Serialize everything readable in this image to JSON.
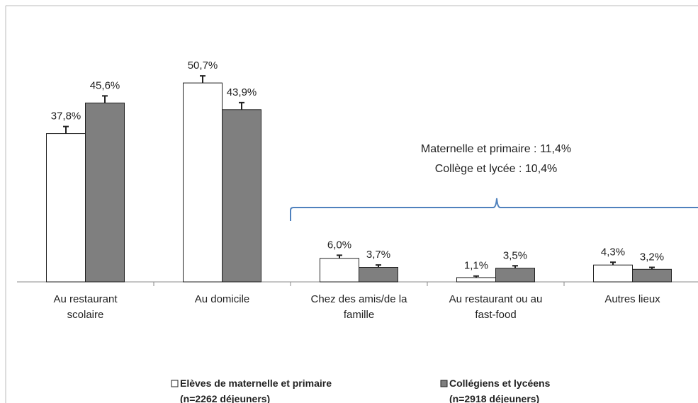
{
  "chart_data": {
    "type": "bar",
    "categories": [
      "Au restaurant\nscolaire",
      "Au domicile",
      "Chez des amis/de la\nfamille",
      "Au restaurant ou au\nfast-food",
      "Autres lieux"
    ],
    "series": [
      {
        "name": "Elèves de maternelle et primaire\n(n=2262 déjeuners)",
        "color": "#ffffff",
        "values": [
          37.8,
          50.7,
          6.0,
          1.1,
          4.3
        ],
        "value_labels": [
          "37,8%",
          "50,7%",
          "6,0%",
          "1,1%",
          "4,3%"
        ],
        "errors": [
          1.8,
          1.8,
          0.8,
          0.4,
          0.7
        ]
      },
      {
        "name": "Collégiens et lycéens\n(n=2918 déjeuners)",
        "color": "#7f7f7f",
        "values": [
          45.6,
          43.9,
          3.7,
          3.5,
          3.2
        ],
        "value_labels": [
          "45,6%",
          "43,9%",
          "3,7%",
          "3,5%",
          "3,2%"
        ],
        "errors": [
          1.8,
          1.8,
          0.6,
          0.6,
          0.5
        ]
      }
    ],
    "ylim": [
      0,
      60
    ],
    "annotations": [
      "Maternelle et primaire : 11,4%",
      "Collège et lycée : 10,4%"
    ]
  }
}
